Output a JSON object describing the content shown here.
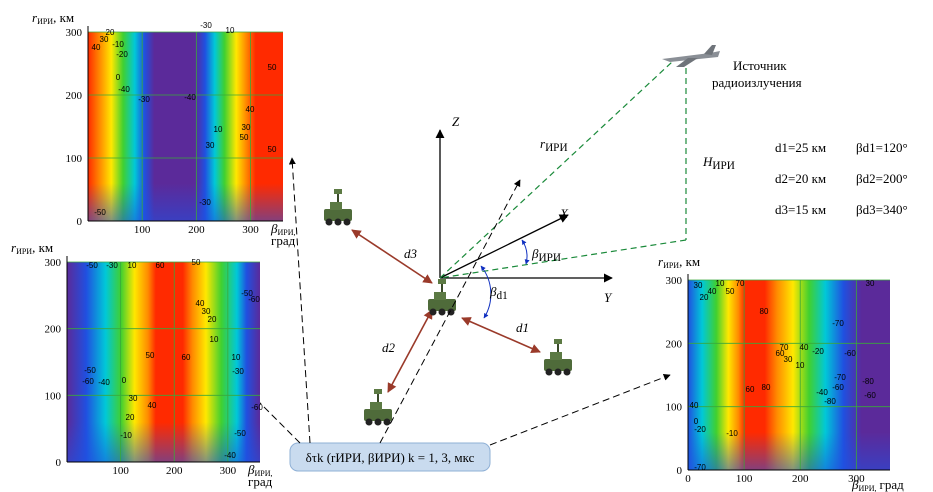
{
  "plots": [
    {
      "y_label": {
        "symbol": "r",
        "sub": "ИРИ",
        "unit": ", км"
      },
      "x_label": {
        "symbol": "β",
        "sub": "ИРИ,",
        "unit": "град"
      },
      "xlim": [
        0,
        360
      ],
      "ylim": [
        0,
        300
      ],
      "xticks": [
        100,
        200,
        300
      ],
      "yticks": [
        0,
        100,
        200,
        300
      ],
      "contour_labels": [
        "40",
        "30",
        "20",
        "-10",
        "-20",
        "0",
        "-40",
        "-30",
        "-40",
        "-30",
        "10",
        "10",
        "30",
        "50",
        "50",
        "40",
        "30",
        "50",
        "-30",
        "-50"
      ]
    },
    {
      "y_label": {
        "symbol": "r",
        "sub": "ИРИ",
        "unit": ", км"
      },
      "x_label": {
        "symbol": "β",
        "sub": "ИРИ,",
        "unit": "град"
      },
      "xlim": [
        0,
        360
      ],
      "ylim": [
        0,
        300
      ],
      "xticks": [
        100,
        200,
        300
      ],
      "yticks": [
        0,
        100,
        200,
        300
      ],
      "contour_labels": [
        "-50",
        "-30",
        "10",
        "60",
        "50",
        "-50",
        "-60",
        "-40",
        "0",
        "50",
        "60",
        "10",
        "40",
        "30",
        "20",
        "-30",
        "-50",
        "-60",
        "10",
        "30",
        "40",
        "20",
        "-10",
        "-50",
        "-60",
        "-40"
      ]
    },
    {
      "y_label": {
        "symbol": "r",
        "sub": "ИРИ",
        "unit": ", км"
      },
      "x_label": {
        "symbol": "β",
        "sub": "ИРИ,",
        "unit": "град"
      },
      "xlim": [
        0,
        360
      ],
      "ylim": [
        0,
        300
      ],
      "xticks": [
        0,
        100,
        200,
        300
      ],
      "yticks": [
        0,
        100,
        200,
        300
      ],
      "contour_labels": [
        "30",
        "10",
        "40",
        "70",
        "20",
        "50",
        "80",
        "70",
        "40",
        "60",
        "30",
        "10",
        "-20",
        "60",
        "80",
        "30",
        "-70",
        "-60",
        "-80",
        "-40",
        "-70",
        "-60",
        "-80",
        "-60",
        "40",
        "0",
        "-20",
        "-10",
        "-70"
      ]
    }
  ],
  "diagram": {
    "source": [
      "Источник",
      "радиоизлучения"
    ],
    "axes": {
      "z": "Z",
      "y": "Y",
      "x": "X"
    },
    "r": {
      "symbol": "r",
      "sub": "ИРИ"
    },
    "h": {
      "symbol": "H",
      "sub": "ИРИ"
    },
    "beta": {
      "symbol": "β",
      "sub": "ИРИ"
    },
    "beta_d1": {
      "symbol": "β",
      "sub": "d1"
    },
    "distances": [
      "d1",
      "d2",
      "d3"
    ],
    "params": [
      {
        "d": "d1=25 км",
        "b": "βd1=120°"
      },
      {
        "d": "d2=20 км",
        "b": "βd2=200°"
      },
      {
        "d": "d3=15 км",
        "b": "βd3=340°"
      }
    ],
    "formula": "δτk (rИРИ, βИРИ)  k = 1, 3, мкс"
  }
}
